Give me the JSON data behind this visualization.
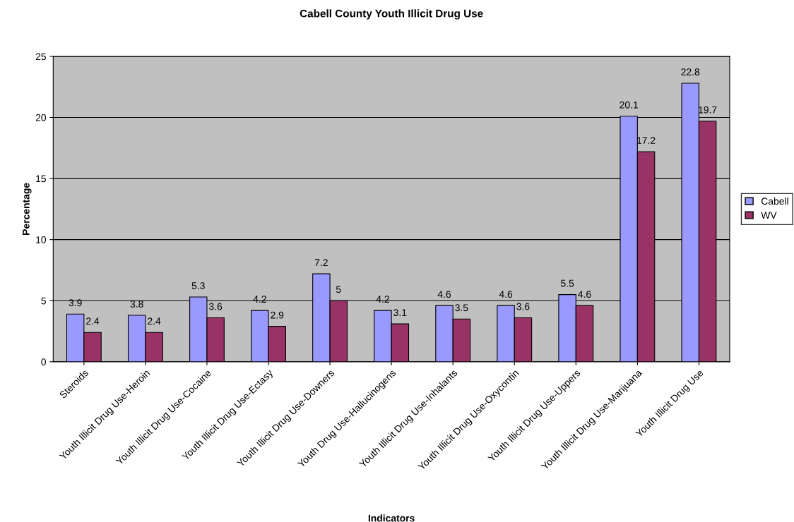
{
  "chart_data": {
    "type": "bar",
    "title": "Cabell County Youth Illicit Drug Use",
    "xlabel": "Indicators",
    "ylabel": "Percentage",
    "categories": [
      "Steroids",
      "Youth Illicit Drug Use-Heroin",
      "Youth Illicit Drug Use-Cocaine",
      "Youth Illicit Drug Use-Ectasy",
      "Youth Illicit Drug Use-Downers",
      "Youth Drug Use-Hallucinogens",
      "Youth Illicit Drug Use-Inhalants",
      "Youth Illicit Drug Use-Oxycontin",
      "Youth Illicit Drug Use-Uppers",
      "Youth Illicit Drug Use-Marijuana",
      "Youth Illicit Drug Use"
    ],
    "series": [
      {
        "name": "Cabell",
        "color": "#9999ff",
        "values": [
          3.9,
          3.8,
          5.3,
          4.2,
          7.2,
          4.2,
          4.6,
          4.6,
          5.5,
          20.1,
          22.8
        ]
      },
      {
        "name": "WV",
        "color": "#993366",
        "values": [
          2.4,
          2.4,
          3.6,
          2.9,
          5,
          3.1,
          3.5,
          3.6,
          4.6,
          17.2,
          19.7
        ]
      }
    ],
    "ylim": [
      0,
      25
    ],
    "yticks": [
      0,
      5,
      10,
      15,
      20,
      25
    ],
    "grid": "y",
    "legend": "right",
    "data_labels": true
  }
}
